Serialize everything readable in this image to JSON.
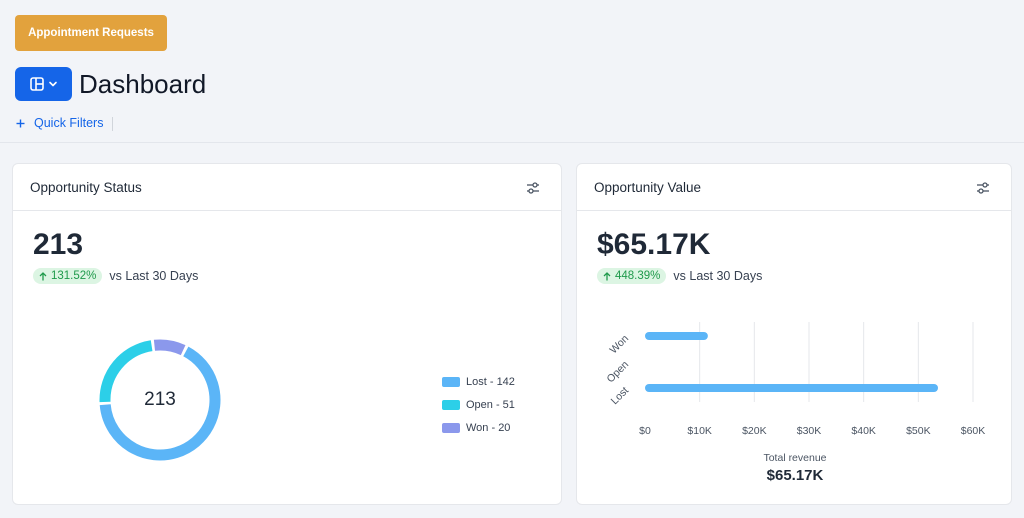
{
  "header": {
    "appointment_button": "Appointment Requests",
    "title": "Dashboard",
    "quick_filters_icon": "plus-icon",
    "quick_filters": "Quick Filters"
  },
  "opportunity_status": {
    "title": "Opportunity Status",
    "value": "213",
    "change": "131.52%",
    "change_label": "vs Last 30 Days",
    "donut_center": "213",
    "legend": [
      {
        "label": "Lost - 142",
        "color": "#5bb5f7"
      },
      {
        "label": "Open - 51",
        "color": "#2ccfe8"
      },
      {
        "label": "Won - 20",
        "color": "#8b98ec"
      }
    ],
    "segments": [
      {
        "name": "Lost",
        "value": 142,
        "color": "#5bb5f7"
      },
      {
        "name": "Open",
        "value": 51,
        "color": "#2ccfe8"
      },
      {
        "name": "Won",
        "value": 20,
        "color": "#8b98ec"
      }
    ]
  },
  "opportunity_value": {
    "title": "Opportunity Value",
    "value": "$65.17K",
    "change": "448.39%",
    "change_label": "vs Last 30 Days",
    "total_label": "Total revenue",
    "total_value": "$65.17K"
  },
  "chart_data": {
    "type": "bar",
    "orientation": "horizontal",
    "categories": [
      "Won",
      "Open",
      "Lost"
    ],
    "values": [
      11.5,
      0,
      53.6
    ],
    "x_tick_labels": [
      "$0",
      "$10K",
      "$20K",
      "$30K",
      "$40K",
      "$50K",
      "$60K"
    ],
    "xlim": [
      0,
      60
    ],
    "xlabel": "Total revenue",
    "color": "#5bb5f7"
  },
  "colors": {
    "accent": "#1565e8",
    "appointment": "#e2a23d",
    "badge_bg": "#dcf5e3",
    "badge_text": "#1f9a4b"
  }
}
